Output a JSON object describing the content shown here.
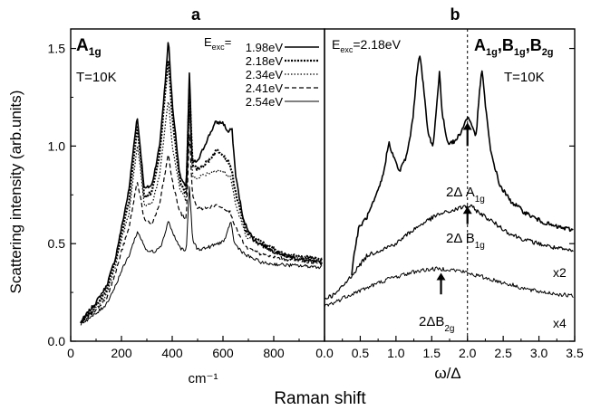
{
  "figure": {
    "ylabel": "Scattering intensity (arb.units)",
    "xlabel_shared": "Raman shift"
  },
  "chart_data": [
    {
      "panel": "a",
      "type": "line",
      "title": "a",
      "xlabel": "cm⁻¹",
      "ylabel": "Scattering intensity (arb.units)",
      "xlim": [
        0,
        1000
      ],
      "ylim": [
        0,
        1.6
      ],
      "xticks": [
        0,
        200,
        400,
        600,
        800
      ],
      "yticks": [
        0.0,
        0.5,
        1.0,
        1.5
      ],
      "ytick_labels": [
        "0.0",
        "0.5",
        "1.0",
        "1.5"
      ],
      "symmetry_label": {
        "main": "A",
        "sub": "1g"
      },
      "temperature_label": "T=10K",
      "legend": {
        "header": {
          "main": "E",
          "sub": "exc",
          "tail": "="
        },
        "position": "top-right",
        "entries": [
          "1.98eV",
          "2.18eV",
          "2.34eV",
          "2.41eV",
          "2.54eV"
        ]
      },
      "series": [
        {
          "name": "1.98eV",
          "style": "solid",
          "width": 1.6,
          "points": [
            [
              40,
              0.1
            ],
            [
              100,
              0.2
            ],
            [
              140,
              0.28
            ],
            [
              175,
              0.42
            ],
            [
              200,
              0.58
            ],
            [
              230,
              0.78
            ],
            [
              255,
              1.08
            ],
            [
              262,
              1.15
            ],
            [
              272,
              1.02
            ],
            [
              290,
              0.78
            ],
            [
              320,
              0.8
            ],
            [
              350,
              1.0
            ],
            [
              372,
              1.32
            ],
            [
              385,
              1.55
            ],
            [
              400,
              1.22
            ],
            [
              430,
              0.85
            ],
            [
              455,
              0.78
            ],
            [
              468,
              1.4
            ],
            [
              478,
              0.92
            ],
            [
              500,
              0.92
            ],
            [
              540,
              1.04
            ],
            [
              570,
              1.12
            ],
            [
              600,
              1.12
            ],
            [
              620,
              1.07
            ],
            [
              635,
              1.09
            ],
            [
              650,
              0.85
            ],
            [
              680,
              0.62
            ],
            [
              720,
              0.52
            ],
            [
              800,
              0.46
            ],
            [
              900,
              0.42
            ],
            [
              990,
              0.4
            ]
          ]
        },
        {
          "name": "2.18eV",
          "style": "dotted-circles",
          "width": 1.2,
          "points": [
            [
              40,
              0.1
            ],
            [
              100,
              0.18
            ],
            [
              140,
              0.26
            ],
            [
              175,
              0.4
            ],
            [
              200,
              0.55
            ],
            [
              230,
              0.72
            ],
            [
              262,
              1.1
            ],
            [
              275,
              0.95
            ],
            [
              290,
              0.74
            ],
            [
              320,
              0.76
            ],
            [
              350,
              0.95
            ],
            [
              385,
              1.45
            ],
            [
              400,
              1.15
            ],
            [
              430,
              0.82
            ],
            [
              455,
              0.75
            ],
            [
              468,
              1.32
            ],
            [
              480,
              0.9
            ],
            [
              500,
              0.88
            ],
            [
              540,
              0.92
            ],
            [
              575,
              0.98
            ],
            [
              600,
              0.96
            ],
            [
              630,
              0.9
            ],
            [
              650,
              0.76
            ],
            [
              690,
              0.56
            ],
            [
              760,
              0.5
            ],
            [
              850,
              0.44
            ],
            [
              990,
              0.42
            ]
          ]
        },
        {
          "name": "2.34eV",
          "style": "dotted",
          "width": 1.2,
          "points": [
            [
              40,
              0.1
            ],
            [
              100,
              0.17
            ],
            [
              140,
              0.24
            ],
            [
              175,
              0.38
            ],
            [
              200,
              0.52
            ],
            [
              230,
              0.66
            ],
            [
              262,
              1.0
            ],
            [
              275,
              0.88
            ],
            [
              290,
              0.7
            ],
            [
              320,
              0.7
            ],
            [
              350,
              0.85
            ],
            [
              385,
              1.25
            ],
            [
              400,
              1.0
            ],
            [
              430,
              0.78
            ],
            [
              455,
              0.72
            ],
            [
              468,
              1.2
            ],
            [
              480,
              0.84
            ],
            [
              500,
              0.84
            ],
            [
              540,
              0.86
            ],
            [
              580,
              0.88
            ],
            [
              610,
              0.86
            ],
            [
              630,
              0.84
            ],
            [
              650,
              0.7
            ],
            [
              690,
              0.54
            ],
            [
              760,
              0.48
            ],
            [
              850,
              0.44
            ],
            [
              990,
              0.42
            ]
          ]
        },
        {
          "name": "2.41eV",
          "style": "dashed",
          "width": 1.2,
          "points": [
            [
              40,
              0.1
            ],
            [
              100,
              0.16
            ],
            [
              140,
              0.22
            ],
            [
              175,
              0.34
            ],
            [
              200,
              0.46
            ],
            [
              230,
              0.58
            ],
            [
              262,
              0.82
            ],
            [
              275,
              0.74
            ],
            [
              290,
              0.62
            ],
            [
              320,
              0.6
            ],
            [
              350,
              0.7
            ],
            [
              385,
              0.96
            ],
            [
              400,
              0.82
            ],
            [
              430,
              0.66
            ],
            [
              455,
              0.62
            ],
            [
              468,
              1.08
            ],
            [
              480,
              0.74
            ],
            [
              500,
              0.68
            ],
            [
              540,
              0.68
            ],
            [
              580,
              0.7
            ],
            [
              610,
              0.68
            ],
            [
              630,
              0.66
            ],
            [
              650,
              0.58
            ],
            [
              690,
              0.48
            ],
            [
              760,
              0.44
            ],
            [
              850,
              0.42
            ],
            [
              990,
              0.4
            ]
          ]
        },
        {
          "name": "2.54eV",
          "style": "solid",
          "width": 1.0,
          "points": [
            [
              40,
              0.09
            ],
            [
              100,
              0.14
            ],
            [
              140,
              0.19
            ],
            [
              175,
              0.28
            ],
            [
              200,
              0.36
            ],
            [
              230,
              0.44
            ],
            [
              262,
              0.56
            ],
            [
              280,
              0.52
            ],
            [
              300,
              0.46
            ],
            [
              330,
              0.46
            ],
            [
              360,
              0.5
            ],
            [
              385,
              0.62
            ],
            [
              400,
              0.56
            ],
            [
              430,
              0.48
            ],
            [
              455,
              0.46
            ],
            [
              468,
              0.8
            ],
            [
              480,
              0.52
            ],
            [
              500,
              0.47
            ],
            [
              540,
              0.48
            ],
            [
              580,
              0.5
            ],
            [
              610,
              0.52
            ],
            [
              630,
              0.62
            ],
            [
              645,
              0.5
            ],
            [
              690,
              0.44
            ],
            [
              760,
              0.4
            ],
            [
              850,
              0.39
            ],
            [
              990,
              0.38
            ]
          ]
        }
      ]
    },
    {
      "panel": "b",
      "type": "line",
      "title": "b",
      "xlabel": "ω/Δ",
      "xlim": [
        0,
        3.5
      ],
      "ylim": [
        0,
        1.6
      ],
      "xticks": [
        0.0,
        0.5,
        1.0,
        1.5,
        2.0,
        2.5,
        3.0,
        3.5
      ],
      "xtick_labels": [
        "0.0",
        "0.5",
        "1.0",
        "1.5",
        "2.0",
        "2.5",
        "3.0",
        "3.5"
      ],
      "excitation_label": {
        "main": "E",
        "sub": "exc",
        "tail": "=2.18eV"
      },
      "symmetry_label": {
        "parts": [
          {
            "main": "A",
            "sub": "1g"
          },
          {
            "main": ",B",
            "sub": "1g"
          },
          {
            "main": ",B",
            "sub": "2g"
          }
        ]
      },
      "temperature_label": "T=10K",
      "vertical_dashed_line_x": 2.0,
      "annotations": [
        {
          "text_main": "2Δ A",
          "text_sub": "1g",
          "arrow_x": 2.0,
          "arrow_y_from": 1.0,
          "arrow_y_to": 1.12
        },
        {
          "text_main": "2Δ B",
          "text_sub": "1g",
          "arrow_x": 2.0,
          "arrow_y_from": 0.6,
          "arrow_y_to": 0.69
        },
        {
          "text_main": "2ΔB",
          "text_sub": "2g",
          "arrow_x": 1.63,
          "arrow_y_from": 0.24,
          "arrow_y_to": 0.35
        }
      ],
      "multipliers": [
        "x2",
        "x4"
      ],
      "series": [
        {
          "name": "A1g",
          "style": "solid",
          "width": 1.6,
          "points": [
            [
              0.38,
              0.35
            ],
            [
              0.42,
              0.46
            ],
            [
              0.48,
              0.58
            ],
            [
              0.6,
              0.64
            ],
            [
              0.72,
              0.74
            ],
            [
              0.82,
              0.85
            ],
            [
              0.9,
              1.02
            ],
            [
              0.98,
              0.93
            ],
            [
              1.05,
              0.87
            ],
            [
              1.15,
              0.95
            ],
            [
              1.23,
              1.12
            ],
            [
              1.3,
              1.4
            ],
            [
              1.33,
              1.48
            ],
            [
              1.38,
              1.32
            ],
            [
              1.45,
              1.06
            ],
            [
              1.52,
              1.0
            ],
            [
              1.58,
              1.25
            ],
            [
              1.61,
              1.4
            ],
            [
              1.64,
              1.18
            ],
            [
              1.72,
              1.02
            ],
            [
              1.82,
              1.02
            ],
            [
              1.92,
              1.08
            ],
            [
              2.0,
              1.15
            ],
            [
              2.06,
              1.11
            ],
            [
              2.12,
              1.05
            ],
            [
              2.17,
              1.28
            ],
            [
              2.2,
              1.4
            ],
            [
              2.24,
              1.25
            ],
            [
              2.32,
              0.98
            ],
            [
              2.45,
              0.8
            ],
            [
              2.6,
              0.72
            ],
            [
              2.8,
              0.66
            ],
            [
              3.0,
              0.62
            ],
            [
              3.2,
              0.59
            ],
            [
              3.48,
              0.57
            ]
          ]
        },
        {
          "name": "B1g (x2)",
          "style": "solid",
          "width": 1.2,
          "points": [
            [
              0.0,
              0.22
            ],
            [
              0.15,
              0.24
            ],
            [
              0.3,
              0.3
            ],
            [
              0.45,
              0.37
            ],
            [
              0.6,
              0.44
            ],
            [
              0.8,
              0.47
            ],
            [
              1.0,
              0.5
            ],
            [
              1.2,
              0.56
            ],
            [
              1.4,
              0.61
            ],
            [
              1.6,
              0.65
            ],
            [
              1.8,
              0.67
            ],
            [
              1.95,
              0.69
            ],
            [
              2.05,
              0.69
            ],
            [
              2.2,
              0.65
            ],
            [
              2.4,
              0.6
            ],
            [
              2.6,
              0.55
            ],
            [
              2.8,
              0.52
            ],
            [
              3.0,
              0.5
            ],
            [
              3.2,
              0.48
            ],
            [
              3.48,
              0.46
            ]
          ]
        },
        {
          "name": "B2g (x4)",
          "style": "solid",
          "width": 1.0,
          "points": [
            [
              0.0,
              0.18
            ],
            [
              0.15,
              0.2
            ],
            [
              0.3,
              0.23
            ],
            [
              0.5,
              0.26
            ],
            [
              0.7,
              0.29
            ],
            [
              0.9,
              0.32
            ],
            [
              1.1,
              0.34
            ],
            [
              1.3,
              0.36
            ],
            [
              1.5,
              0.37
            ],
            [
              1.7,
              0.37
            ],
            [
              1.9,
              0.36
            ],
            [
              2.1,
              0.34
            ],
            [
              2.3,
              0.32
            ],
            [
              2.5,
              0.3
            ],
            [
              2.7,
              0.28
            ],
            [
              2.9,
              0.26
            ],
            [
              3.1,
              0.25
            ],
            [
              3.3,
              0.24
            ],
            [
              3.48,
              0.23
            ]
          ]
        }
      ]
    }
  ]
}
